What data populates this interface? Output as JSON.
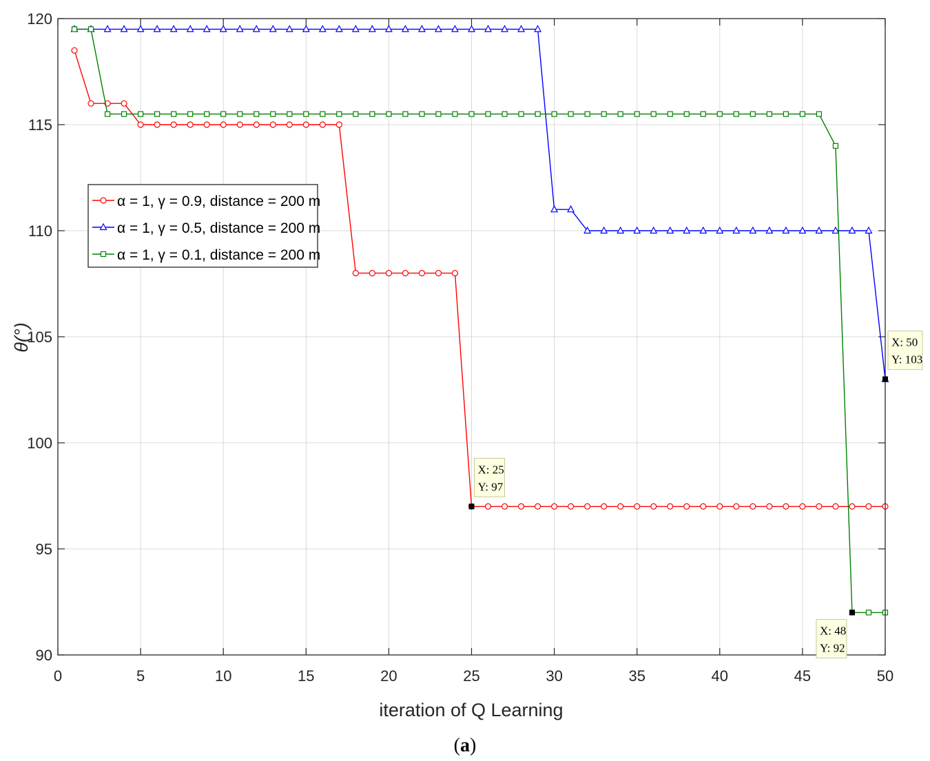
{
  "chart_data": {
    "type": "line",
    "title": "",
    "xlabel": "iteration of Q Learning",
    "ylabel": "θ(°)",
    "xlim": [
      0,
      50
    ],
    "ylim": [
      90,
      120
    ],
    "xticks": [
      0,
      5,
      10,
      15,
      20,
      25,
      30,
      35,
      40,
      45,
      50
    ],
    "yticks": [
      90,
      95,
      100,
      105,
      110,
      115,
      120
    ],
    "grid": true,
    "legend_position": "upper-left",
    "x": [
      1,
      2,
      3,
      4,
      5,
      6,
      7,
      8,
      9,
      10,
      11,
      12,
      13,
      14,
      15,
      16,
      17,
      18,
      19,
      20,
      21,
      22,
      23,
      24,
      25,
      26,
      27,
      28,
      29,
      30,
      31,
      32,
      33,
      34,
      35,
      36,
      37,
      38,
      39,
      40,
      41,
      42,
      43,
      44,
      45,
      46,
      47,
      48,
      49,
      50
    ],
    "series": [
      {
        "name": "α = 1, γ = 0.9, distance = 200 m",
        "color": "#ff0000",
        "marker": "circle",
        "values": [
          118.5,
          116,
          116,
          116,
          115,
          115,
          115,
          115,
          115,
          115,
          115,
          115,
          115,
          115,
          115,
          115,
          115,
          108,
          108,
          108,
          108,
          108,
          108,
          108,
          97,
          97,
          97,
          97,
          97,
          97,
          97,
          97,
          97,
          97,
          97,
          97,
          97,
          97,
          97,
          97,
          97,
          97,
          97,
          97,
          97,
          97,
          97,
          97,
          97,
          97
        ]
      },
      {
        "name": "α = 1, γ = 0.5, distance = 200 m",
        "color": "#0000ff",
        "marker": "triangle",
        "values": [
          119.5,
          119.5,
          119.5,
          119.5,
          119.5,
          119.5,
          119.5,
          119.5,
          119.5,
          119.5,
          119.5,
          119.5,
          119.5,
          119.5,
          119.5,
          119.5,
          119.5,
          119.5,
          119.5,
          119.5,
          119.5,
          119.5,
          119.5,
          119.5,
          119.5,
          119.5,
          119.5,
          119.5,
          119.5,
          111,
          111,
          110,
          110,
          110,
          110,
          110,
          110,
          110,
          110,
          110,
          110,
          110,
          110,
          110,
          110,
          110,
          110,
          110,
          110,
          103
        ]
      },
      {
        "name": "α = 1, γ = 0.1, distance = 200 m",
        "color": "#008000",
        "marker": "square",
        "values": [
          119.5,
          119.5,
          115.5,
          115.5,
          115.5,
          115.5,
          115.5,
          115.5,
          115.5,
          115.5,
          115.5,
          115.5,
          115.5,
          115.5,
          115.5,
          115.5,
          115.5,
          115.5,
          115.5,
          115.5,
          115.5,
          115.5,
          115.5,
          115.5,
          115.5,
          115.5,
          115.5,
          115.5,
          115.5,
          115.5,
          115.5,
          115.5,
          115.5,
          115.5,
          115.5,
          115.5,
          115.5,
          115.5,
          115.5,
          115.5,
          115.5,
          115.5,
          115.5,
          115.5,
          115.5,
          115.5,
          114,
          92,
          92,
          92
        ]
      }
    ],
    "datatips": [
      {
        "x": 25,
        "y": 97,
        "line1": "X: 25",
        "line2": "Y: 97",
        "placement": "above-right"
      },
      {
        "x": 50,
        "y": 103,
        "line1": "X: 50",
        "line2": "Y: 103",
        "placement": "above-right"
      },
      {
        "x": 48,
        "y": 92,
        "line1": "X: 48",
        "line2": "Y: 92",
        "placement": "below-left"
      }
    ]
  },
  "caption": {
    "open": "(",
    "letter": "a",
    "close": ")"
  }
}
